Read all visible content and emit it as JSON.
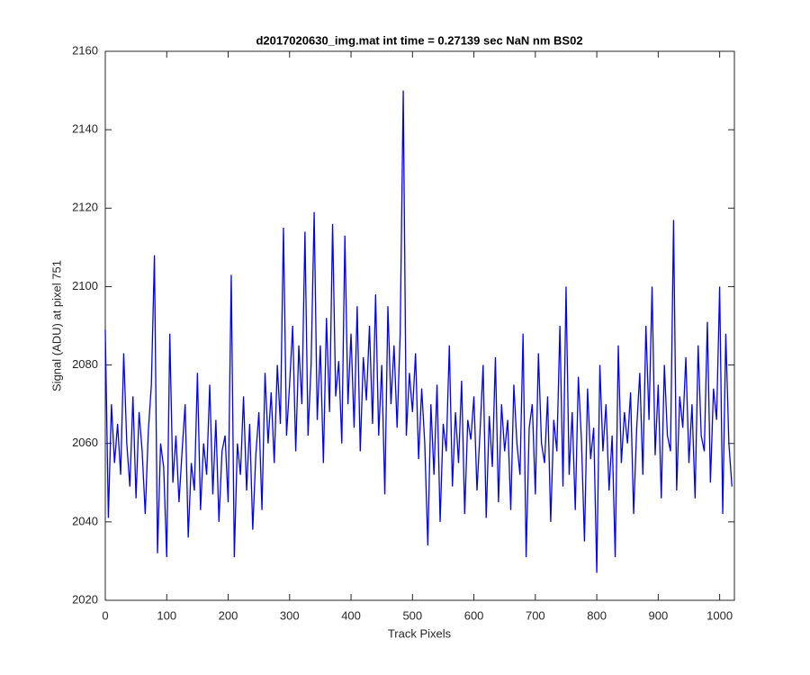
{
  "chart_data": {
    "type": "line",
    "title": "d2017020630_img.mat int time = 0.27139 sec  NaN nm BS02",
    "x_label": "Track Pixels",
    "y_label": "Signal (ADU) at pixel 751",
    "color": "#0000ff",
    "xlim": [
      0,
      1024
    ],
    "ylim": [
      2020,
      2160
    ],
    "xticks": [
      0,
      100,
      200,
      300,
      400,
      500,
      600,
      700,
      800,
      900,
      1000
    ],
    "yticks": [
      2020,
      2040,
      2060,
      2080,
      2100,
      2120,
      2140,
      2160
    ],
    "grid": false,
    "x": [
      0,
      5,
      10,
      15,
      20,
      25,
      30,
      35,
      40,
      45,
      50,
      55,
      60,
      65,
      70,
      75,
      80,
      85,
      90,
      95,
      100,
      105,
      110,
      115,
      120,
      125,
      130,
      135,
      140,
      145,
      150,
      155,
      160,
      165,
      170,
      175,
      180,
      185,
      190,
      195,
      200,
      205,
      210,
      215,
      220,
      225,
      230,
      235,
      240,
      245,
      250,
      255,
      260,
      265,
      270,
      275,
      280,
      285,
      290,
      295,
      300,
      305,
      310,
      315,
      320,
      325,
      330,
      335,
      340,
      345,
      350,
      355,
      360,
      365,
      370,
      375,
      380,
      385,
      390,
      395,
      400,
      405,
      410,
      415,
      420,
      425,
      430,
      435,
      440,
      445,
      450,
      455,
      460,
      465,
      470,
      475,
      480,
      485,
      490,
      495,
      500,
      505,
      510,
      515,
      520,
      525,
      530,
      535,
      540,
      545,
      550,
      555,
      560,
      565,
      570,
      575,
      580,
      585,
      590,
      595,
      600,
      605,
      610,
      615,
      620,
      625,
      630,
      635,
      640,
      645,
      650,
      655,
      660,
      665,
      670,
      675,
      680,
      685,
      690,
      695,
      700,
      705,
      710,
      715,
      720,
      725,
      730,
      735,
      740,
      745,
      750,
      755,
      760,
      765,
      770,
      775,
      780,
      785,
      790,
      795,
      800,
      805,
      810,
      815,
      820,
      825,
      830,
      835,
      840,
      845,
      850,
      855,
      860,
      865,
      870,
      875,
      880,
      885,
      890,
      895,
      900,
      905,
      910,
      915,
      920,
      925,
      930,
      935,
      940,
      945,
      950,
      955,
      960,
      965,
      970,
      975,
      980,
      985,
      990,
      995,
      1000,
      1005,
      1010,
      1015,
      1020
    ],
    "values": [
      2089,
      2041,
      2070,
      2055,
      2065,
      2052,
      2083,
      2060,
      2049,
      2072,
      2046,
      2068,
      2058,
      2042,
      2063,
      2075,
      2108,
      2032,
      2060,
      2054,
      2031,
      2088,
      2050,
      2062,
      2045,
      2058,
      2070,
      2036,
      2055,
      2048,
      2078,
      2043,
      2060,
      2052,
      2075,
      2047,
      2066,
      2040,
      2058,
      2062,
      2045,
      2103,
      2031,
      2060,
      2052,
      2072,
      2048,
      2065,
      2038,
      2057,
      2068,
      2043,
      2078,
      2060,
      2073,
      2055,
      2080,
      2065,
      2115,
      2062,
      2075,
      2090,
      2058,
      2085,
      2070,
      2114,
      2062,
      2080,
      2119,
      2066,
      2085,
      2055,
      2092,
      2068,
      2116,
      2072,
      2081,
      2060,
      2113,
      2070,
      2088,
      2064,
      2095,
      2058,
      2082,
      2071,
      2090,
      2065,
      2098,
      2062,
      2080,
      2047,
      2095,
      2070,
      2085,
      2064,
      2088,
      2150,
      2062,
      2078,
      2068,
      2083,
      2056,
      2074,
      2060,
      2034,
      2070,
      2052,
      2075,
      2040,
      2065,
      2058,
      2085,
      2049,
      2068,
      2055,
      2076,
      2042,
      2066,
      2061,
      2072,
      2048,
      2063,
      2080,
      2041,
      2067,
      2054,
      2082,
      2045,
      2070,
      2058,
      2066,
      2043,
      2075,
      2060,
      2052,
      2088,
      2031,
      2064,
      2070,
      2047,
      2083,
      2060,
      2055,
      2072,
      2040,
      2066,
      2058,
      2090,
      2049,
      2100,
      2052,
      2068,
      2043,
      2077,
      2061,
      2035,
      2074,
      2056,
      2064,
      2027,
      2080,
      2058,
      2070,
      2048,
      2062,
      2031,
      2085,
      2055,
      2068,
      2060,
      2073,
      2042,
      2064,
      2078,
      2052,
      2090,
      2066,
      2100,
      2057,
      2075,
      2046,
      2080,
      2062,
      2058,
      2117,
      2048,
      2072,
      2064,
      2082,
      2055,
      2070,
      2046,
      2085,
      2062,
      2058,
      2091,
      2050,
      2074,
      2066,
      2100,
      2042,
      2088,
      2060,
      2049
    ]
  }
}
